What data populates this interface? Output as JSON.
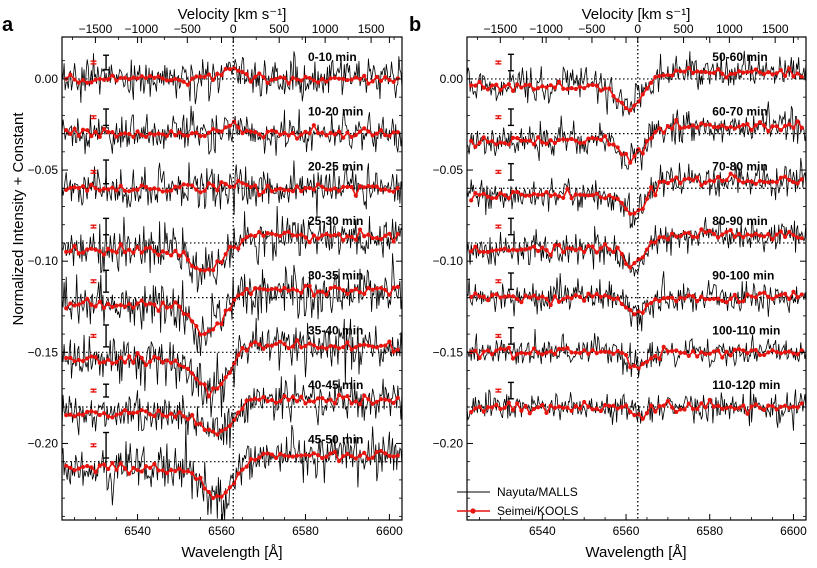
{
  "chart_data": [
    {
      "type": "line",
      "panel": "a",
      "title": "Velocity [km s⁻¹]",
      "xlabel": "Wavelength [Å]",
      "ylabel": "Normalized Intensity + Constant",
      "xlim": [
        6522,
        6603
      ],
      "ylim": [
        -0.242,
        0.023
      ],
      "vlim": [
        -1850,
        1850
      ],
      "rest_wavelength": 6562.8,
      "x_ticks": [
        6540,
        6560,
        6580,
        6600
      ],
      "x_tick_labels": [
        "6540",
        "6560",
        "6580",
        "6600"
      ],
      "y_ticks": [
        0.0,
        -0.05,
        -0.1,
        -0.15,
        -0.2
      ],
      "y_tick_labels": [
        "0.00",
        "−0.05",
        "−0.10",
        "−0.15",
        "−0.20"
      ],
      "v_ticks": [
        -1500,
        -1000,
        -500,
        0,
        500,
        1000,
        1500
      ],
      "v_tick_labels": [
        "−1500",
        "−1000",
        "−500",
        "0",
        "500",
        "1000",
        "1500"
      ],
      "series_names": [
        "Nayuta/MALLS",
        "Seimei/KOOLS"
      ],
      "spectra": [
        {
          "label": "0-10 min",
          "offset": 0.0,
          "depth": -0.007,
          "center": 6562.5,
          "width": 2.5,
          "noise": 0.0085,
          "err_black": 0.008,
          "err_red": 0.0015
        },
        {
          "label": "10-20 min",
          "offset": -0.03,
          "depth": -0.005,
          "center": 6562.0,
          "width": 2.5,
          "noise": 0.0085,
          "err_black": 0.009,
          "err_red": 0.0015
        },
        {
          "label": "20-25 min",
          "offset": -0.06,
          "depth": -0.002,
          "center": 6562.0,
          "width": 2.5,
          "noise": 0.009,
          "err_black": 0.013,
          "err_red": 0.0015
        },
        {
          "label": "25-30 min",
          "offset": -0.09,
          "depth": 0.016,
          "center": 6557.0,
          "width": 3.8,
          "noise": 0.01,
          "err_black": 0.009,
          "err_red": 0.0015
        },
        {
          "label": "30-35 min",
          "offset": -0.12,
          "depth": 0.02,
          "center": 6557.0,
          "width": 3.8,
          "noise": 0.011,
          "err_black": 0.012,
          "err_red": 0.0015
        },
        {
          "label": "35-40 min",
          "offset": -0.15,
          "depth": 0.022,
          "center": 6558.0,
          "width": 3.8,
          "noise": 0.011,
          "err_black": 0.012,
          "err_red": 0.0015
        },
        {
          "label": "40-45 min",
          "offset": -0.18,
          "depth": 0.016,
          "center": 6559.5,
          "width": 3.5,
          "noise": 0.009,
          "err_black": 0.007,
          "err_red": 0.0015
        },
        {
          "label": "45-50 min",
          "offset": -0.21,
          "depth": 0.02,
          "center": 6560.0,
          "width": 3.8,
          "noise": 0.011,
          "err_black": 0.014,
          "err_red": 0.0015
        }
      ]
    },
    {
      "type": "line",
      "panel": "b",
      "title": "Velocity [km s⁻¹]",
      "xlabel": "Wavelength [Å]",
      "ylabel": "",
      "xlim": [
        6522,
        6603
      ],
      "ylim": [
        -0.242,
        0.023
      ],
      "vlim": [
        -1850,
        1850
      ],
      "rest_wavelength": 6562.8,
      "x_ticks": [
        6540,
        6560,
        6580,
        6600
      ],
      "x_tick_labels": [
        "6540",
        "6560",
        "6580",
        "6600"
      ],
      "y_ticks": [
        0.0,
        -0.05,
        -0.1,
        -0.15,
        -0.2
      ],
      "y_tick_labels": [
        "0.00",
        "−0.05",
        "−0.10",
        "−0.15",
        "−0.20"
      ],
      "v_ticks": [
        -1500,
        -1000,
        -500,
        0,
        500,
        1000,
        1500
      ],
      "v_tick_labels": [
        "−1500",
        "−1000",
        "−500",
        "0",
        "500",
        "1000",
        "1500"
      ],
      "series_names": [
        "Nayuta/MALLS",
        "Seimei/KOOLS"
      ],
      "spectra": [
        {
          "label": "50-60 min",
          "offset": 0.0,
          "depth": 0.016,
          "center": 6561.0,
          "width": 3.0,
          "noise": 0.008,
          "err_black": 0.009,
          "err_red": 0.0015
        },
        {
          "label": "60-70 min",
          "offset": -0.03,
          "depth": 0.015,
          "center": 6561.5,
          "width": 2.8,
          "noise": 0.008,
          "err_black": 0.009,
          "err_red": 0.0015
        },
        {
          "label": "70-80 min",
          "offset": -0.06,
          "depth": 0.014,
          "center": 6562.0,
          "width": 2.6,
          "noise": 0.007,
          "err_black": 0.009,
          "err_red": 0.0015
        },
        {
          "label": "80-90 min",
          "offset": -0.09,
          "depth": 0.012,
          "center": 6562.3,
          "width": 2.4,
          "noise": 0.007,
          "err_black": 0.009,
          "err_red": 0.0015
        },
        {
          "label": "90-100 min",
          "offset": -0.12,
          "depth": 0.01,
          "center": 6562.7,
          "width": 2.2,
          "noise": 0.007,
          "err_black": 0.009,
          "err_red": 0.0015
        },
        {
          "label": "100-110 min",
          "offset": -0.15,
          "depth": 0.008,
          "center": 6562.8,
          "width": 2.0,
          "noise": 0.0065,
          "err_black": 0.009,
          "err_red": 0.0015
        },
        {
          "label": "110-120 min",
          "offset": -0.18,
          "depth": 0.006,
          "center": 6562.8,
          "width": 1.8,
          "noise": 0.0065,
          "err_black": 0.009,
          "err_red": 0.0015
        }
      ]
    }
  ],
  "colors": {
    "nayuta": "#000000",
    "seimei": "#e8140f",
    "rest_line": "#000000"
  },
  "panel_labels": {
    "a": "a",
    "b": "b"
  },
  "legend": {
    "nayuta": "Nayuta/MALLS",
    "seimei": "Seimei/KOOLS"
  }
}
